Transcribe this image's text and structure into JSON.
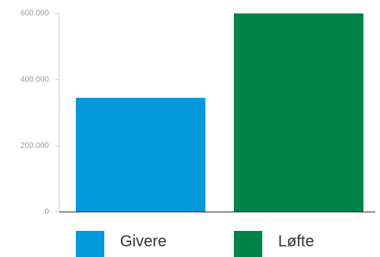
{
  "chart_data": {
    "type": "bar",
    "series": [
      {
        "name": "Givere",
        "color": "#0399dc",
        "values": [
          345000
        ]
      },
      {
        "name": "Løfte",
        "color": "#018249",
        "values": [
          600000
        ]
      }
    ],
    "ylim": [
      0,
      600000
    ],
    "yticks": [
      0,
      {
        "value": 200000,
        "label": "200.000"
      },
      {
        "value": 400000,
        "label": "400.000"
      },
      {
        "value": 600000,
        "label": "600.000"
      }
    ],
    "grid": false,
    "legend": "bottom"
  }
}
